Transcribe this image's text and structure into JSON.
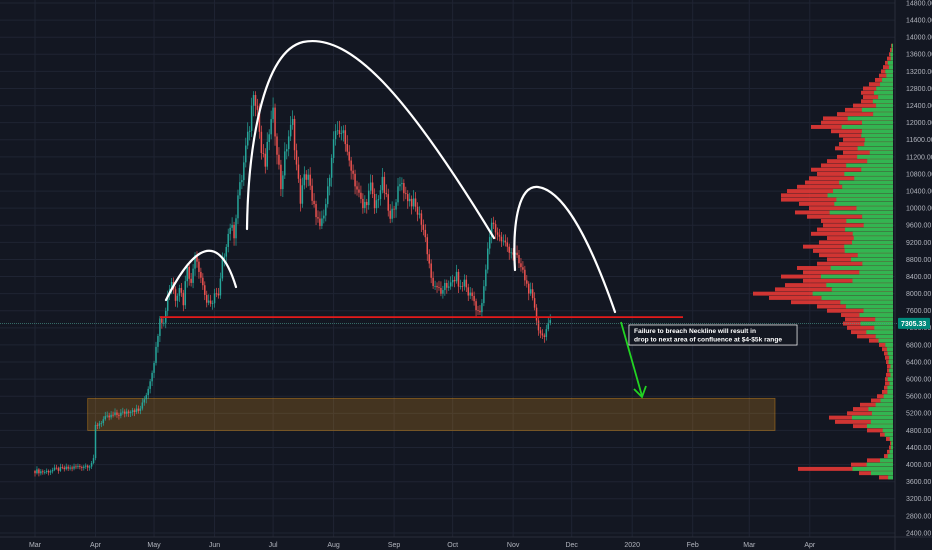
{
  "chart_data": {
    "type": "candlestick",
    "title": "",
    "xlabel": "",
    "ylabel": "",
    "ylim": [
      2400,
      14800
    ],
    "y_ticks": [
      2400,
      2800,
      3200,
      3600,
      4000,
      4400,
      4800,
      5200,
      5600,
      6000,
      6400,
      6800,
      7200,
      7600,
      8000,
      8400,
      8800,
      9200,
      9600,
      10000,
      10400,
      10800,
      11200,
      11600,
      12000,
      12400,
      12800,
      13200,
      13600,
      14000,
      14400,
      14800
    ],
    "x_tick_labels": [
      "Mar",
      "Apr",
      "May",
      "Jun",
      "Jul",
      "Aug",
      "Sep",
      "Oct",
      "Nov",
      "Dec",
      "2020",
      "Feb",
      "Mar",
      "Apr"
    ],
    "x_tick_days": [
      0,
      31,
      61,
      92,
      122,
      153,
      184,
      214,
      245,
      275,
      306,
      337,
      366,
      397
    ],
    "last_price_label": "7305.33",
    "last_price": 7305,
    "neckline_price": 7450,
    "support_zone": [
      4800,
      5550
    ],
    "price_path": [
      [
        0,
        3850
      ],
      [
        5,
        3830
      ],
      [
        10,
        3880
      ],
      [
        15,
        3900
      ],
      [
        20,
        3930
      ],
      [
        25,
        3970
      ],
      [
        28,
        3990
      ],
      [
        30,
        4100
      ],
      [
        31,
        4900
      ],
      [
        35,
        5050
      ],
      [
        40,
        5150
      ],
      [
        45,
        5200
      ],
      [
        50,
        5300
      ],
      [
        53,
        5250
      ],
      [
        55,
        5400
      ],
      [
        58,
        5800
      ],
      [
        60,
        6200
      ],
      [
        62,
        6700
      ],
      [
        64,
        7500
      ],
      [
        66,
        7300
      ],
      [
        68,
        8000
      ],
      [
        70,
        8300
      ],
      [
        72,
        7900
      ],
      [
        74,
        8200
      ],
      [
        76,
        7800
      ],
      [
        78,
        8700
      ],
      [
        80,
        8200
      ],
      [
        82,
        9000
      ],
      [
        84,
        8600
      ],
      [
        86,
        8200
      ],
      [
        88,
        7800
      ],
      [
        90,
        7700
      ],
      [
        92,
        8000
      ],
      [
        94,
        7900
      ],
      [
        96,
        8700
      ],
      [
        98,
        9200
      ],
      [
        100,
        9600
      ],
      [
        102,
        9400
      ],
      [
        104,
        10300
      ],
      [
        106,
        10700
      ],
      [
        108,
        11400
      ],
      [
        110,
        11900
      ],
      [
        112,
        12800
      ],
      [
        114,
        12300
      ],
      [
        116,
        11300
      ],
      [
        118,
        11000
      ],
      [
        120,
        11800
      ],
      [
        122,
        12200
      ],
      [
        124,
        11400
      ],
      [
        126,
        10500
      ],
      [
        128,
        11200
      ],
      [
        130,
        11700
      ],
      [
        132,
        12000
      ],
      [
        134,
        11000
      ],
      [
        136,
        10200
      ],
      [
        138,
        10700
      ],
      [
        140,
        10800
      ],
      [
        142,
        10100
      ],
      [
        144,
        9900
      ],
      [
        146,
        9500
      ],
      [
        148,
        9800
      ],
      [
        150,
        10400
      ],
      [
        152,
        11300
      ],
      [
        154,
        11800
      ],
      [
        156,
        11600
      ],
      [
        158,
        11900
      ],
      [
        160,
        11200
      ],
      [
        162,
        11000
      ],
      [
        164,
        10600
      ],
      [
        166,
        10300
      ],
      [
        168,
        10000
      ],
      [
        170,
        10200
      ],
      [
        172,
        10500
      ],
      [
        174,
        10000
      ],
      [
        176,
        10300
      ],
      [
        178,
        10600
      ],
      [
        180,
        10200
      ],
      [
        182,
        9700
      ],
      [
        184,
        10100
      ],
      [
        186,
        10400
      ],
      [
        188,
        10600
      ],
      [
        190,
        10300
      ],
      [
        192,
        10200
      ],
      [
        194,
        10100
      ],
      [
        196,
        9900
      ],
      [
        198,
        9700
      ],
      [
        200,
        9300
      ],
      [
        202,
        8700
      ],
      [
        204,
        8100
      ],
      [
        206,
        8200
      ],
      [
        208,
        7900
      ],
      [
        210,
        8300
      ],
      [
        212,
        8100
      ],
      [
        214,
        8300
      ],
      [
        216,
        8400
      ],
      [
        218,
        8100
      ],
      [
        220,
        8300
      ],
      [
        222,
        8000
      ],
      [
        224,
        7950
      ],
      [
        226,
        7700
      ],
      [
        228,
        7500
      ],
      [
        230,
        8100
      ],
      [
        232,
        9000
      ],
      [
        234,
        9700
      ],
      [
        236,
        9500
      ],
      [
        238,
        9300
      ],
      [
        240,
        9200
      ],
      [
        242,
        9100
      ],
      [
        244,
        9000
      ],
      [
        246,
        8900
      ],
      [
        248,
        8700
      ],
      [
        250,
        8500
      ],
      [
        252,
        8200
      ],
      [
        254,
        8000
      ],
      [
        256,
        7600
      ],
      [
        258,
        7200
      ],
      [
        260,
        7000
      ],
      [
        262,
        7150
      ],
      [
        264,
        7300
      ]
    ],
    "volume_profile": [
      [
        3700,
        14
      ],
      [
        3800,
        34
      ],
      [
        3900,
        95
      ],
      [
        4000,
        42
      ],
      [
        4100,
        26
      ],
      [
        4200,
        9
      ],
      [
        4300,
        6
      ],
      [
        4400,
        4
      ],
      [
        4500,
        3
      ],
      [
        4600,
        7
      ],
      [
        4700,
        13
      ],
      [
        4800,
        26
      ],
      [
        4900,
        40
      ],
      [
        5000,
        58
      ],
      [
        5100,
        64
      ],
      [
        5200,
        46
      ],
      [
        5300,
        40
      ],
      [
        5400,
        33
      ],
      [
        5500,
        22
      ],
      [
        5600,
        16
      ],
      [
        5700,
        11
      ],
      [
        5800,
        9
      ],
      [
        5900,
        8
      ],
      [
        6000,
        8
      ],
      [
        6100,
        7
      ],
      [
        6200,
        6
      ],
      [
        6300,
        6
      ],
      [
        6400,
        7
      ],
      [
        6500,
        8
      ],
      [
        6600,
        9
      ],
      [
        6700,
        11
      ],
      [
        6800,
        14
      ],
      [
        6900,
        24
      ],
      [
        7000,
        36
      ],
      [
        7100,
        42
      ],
      [
        7200,
        46
      ],
      [
        7300,
        50
      ],
      [
        7400,
        48
      ],
      [
        7500,
        52
      ],
      [
        7600,
        66
      ],
      [
        7700,
        76
      ],
      [
        7800,
        102
      ],
      [
        7900,
        124
      ],
      [
        8000,
        140
      ],
      [
        8100,
        118
      ],
      [
        8200,
        108
      ],
      [
        8300,
        90
      ],
      [
        8400,
        112
      ],
      [
        8500,
        90
      ],
      [
        8600,
        96
      ],
      [
        8700,
        76
      ],
      [
        8800,
        66
      ],
      [
        8900,
        74
      ],
      [
        9000,
        80
      ],
      [
        9100,
        90
      ],
      [
        9200,
        74
      ],
      [
        9300,
        66
      ],
      [
        9400,
        82
      ],
      [
        9500,
        76
      ],
      [
        9600,
        70
      ],
      [
        9700,
        72
      ],
      [
        9800,
        86
      ],
      [
        9900,
        98
      ],
      [
        10000,
        84
      ],
      [
        10100,
        94
      ],
      [
        10200,
        112
      ],
      [
        10300,
        112
      ],
      [
        10400,
        106
      ],
      [
        10500,
        96
      ],
      [
        10600,
        88
      ],
      [
        10700,
        84
      ],
      [
        10800,
        76
      ],
      [
        10900,
        82
      ],
      [
        11000,
        72
      ],
      [
        11100,
        66
      ],
      [
        11200,
        56
      ],
      [
        11300,
        50
      ],
      [
        11400,
        58
      ],
      [
        11500,
        54
      ],
      [
        11600,
        50
      ],
      [
        11700,
        54
      ],
      [
        11800,
        62
      ],
      [
        11900,
        82
      ],
      [
        12000,
        72
      ],
      [
        12100,
        70
      ],
      [
        12200,
        56
      ],
      [
        12300,
        48
      ],
      [
        12400,
        40
      ],
      [
        12500,
        32
      ],
      [
        12600,
        30
      ],
      [
        12700,
        32
      ],
      [
        12800,
        30
      ],
      [
        12900,
        24
      ],
      [
        13000,
        18
      ],
      [
        13100,
        14
      ],
      [
        13200,
        12
      ],
      [
        13300,
        10
      ],
      [
        13400,
        8
      ],
      [
        13500,
        6
      ],
      [
        13600,
        4
      ],
      [
        13700,
        3
      ],
      [
        13800,
        2
      ]
    ],
    "annotation_lines": [
      "Failure to breach Neckline will result in",
      "drop to next area of confluence at $4-$5k range"
    ],
    "colors": {
      "background": "#131722",
      "grid": "#1f2433",
      "up": "#26a69a",
      "down": "#ef5350",
      "neckline": "#e51a1a",
      "zone_fill": "#f59f1a",
      "arrow": "#22d422",
      "shape": "#ffffff",
      "price_tag": "#00897b",
      "profile_green": "#21c354",
      "profile_red": "#e53935"
    }
  }
}
